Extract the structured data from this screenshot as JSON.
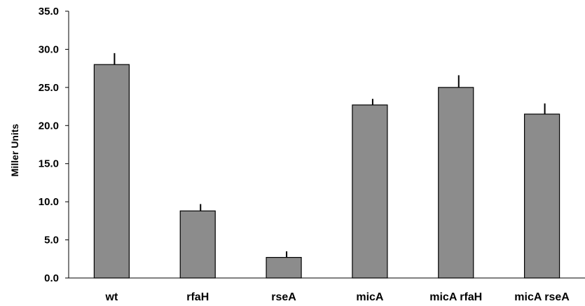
{
  "chart_data": {
    "type": "bar",
    "title": "",
    "xlabel": "",
    "ylabel": "Miller Units",
    "ylim": [
      0,
      35
    ],
    "yticks": [
      "0.0",
      "5.0",
      "10.0",
      "15.0",
      "20.0",
      "25.0",
      "30.0",
      "35.0"
    ],
    "categories": [
      "wt",
      "rfaH",
      "rseA",
      "micA",
      "micA rfaH",
      "micA rseA"
    ],
    "values": [
      28.0,
      8.8,
      2.7,
      22.7,
      25.0,
      21.5
    ],
    "errors": [
      1.5,
      0.9,
      0.8,
      0.8,
      1.6,
      1.4
    ],
    "grid": false,
    "legend": "none",
    "colors": {
      "bar_fill": "#8c8c8c",
      "bar_stroke": "#000000",
      "axis": "#000000"
    }
  }
}
